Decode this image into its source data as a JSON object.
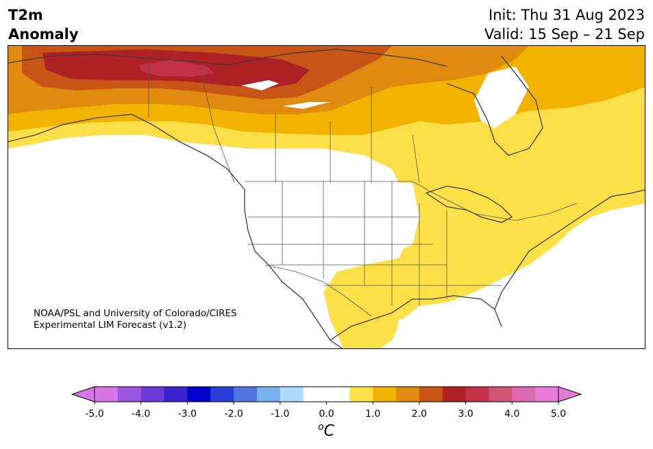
{
  "title": {
    "line1": "T2m",
    "line2": "Anomaly"
  },
  "init": {
    "line1": "Init: Thu 31 Aug 2023",
    "line2": "Valid: 15 Sep – 21 Sep"
  },
  "credit": {
    "line1": "NOAA/PSL and University of Colorado/CIRES",
    "line2": "Experimental LIM Forecast (v1.2)"
  },
  "colorbar": {
    "ticks": [
      "-5.0",
      "-4.0",
      "-3.0",
      "-2.0",
      "-1.0",
      "0.0",
      "1.0",
      "2.0",
      "3.0",
      "4.0",
      "5.0"
    ],
    "unit_base": "C",
    "unit_sup": "o",
    "colors": [
      "#d874e8",
      "#9b55e0",
      "#6b3ad8",
      "#3c20d0",
      "#0000cc",
      "#2a3fd8",
      "#4f74e2",
      "#79b0ef",
      "#aedcf9",
      "#ffffff",
      "#ffffff",
      "#fde047",
      "#f2b300",
      "#e08a10",
      "#c85418",
      "#ae2124",
      "#c23148",
      "#d05478",
      "#dc68b0",
      "#e57bd8"
    ]
  },
  "map": {
    "region": "North America",
    "anomaly_colors": {
      "strong_warm": "#ae2124",
      "warm_red": "#c85418",
      "orange": "#e08a10",
      "gold": "#f2b300",
      "yellow": "#fde047",
      "pink": "#c23148"
    }
  }
}
